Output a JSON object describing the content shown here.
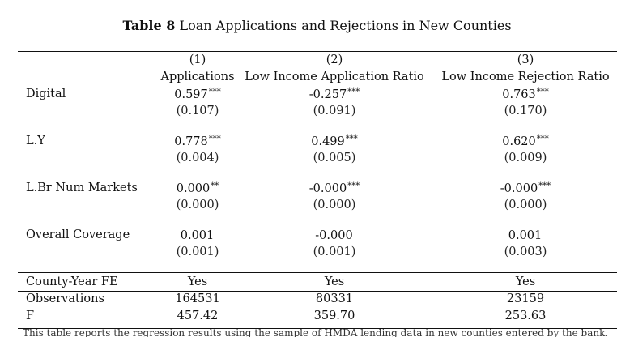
{
  "caption": {
    "label": "Table 8",
    "title": "Loan Applications and Rejections in New Counties"
  },
  "columns": [
    {
      "num": "(1)",
      "name": "Applications"
    },
    {
      "num": "(2)",
      "name": "Low Income Application Ratio"
    },
    {
      "num": "(3)",
      "name": "Low Income Rejection Ratio"
    }
  ],
  "coef_rows": [
    {
      "label": "Digital",
      "coefs": [
        "0.597",
        "-0.257",
        "0.763"
      ],
      "stars": [
        "***",
        "***",
        "***"
      ],
      "ses": [
        "(0.107)",
        "(0.091)",
        "(0.170)"
      ]
    },
    {
      "label": "L.Y",
      "coefs": [
        "0.778",
        "0.499",
        "0.620"
      ],
      "stars": [
        "***",
        "***",
        "***"
      ],
      "ses": [
        "(0.004)",
        "(0.005)",
        "(0.009)"
      ]
    },
    {
      "label": "L.Br Num Markets",
      "coefs": [
        "0.000",
        "-0.000",
        "-0.000"
      ],
      "stars": [
        "**",
        "***",
        "***"
      ],
      "ses": [
        "(0.000)",
        "(0.000)",
        "(0.000)"
      ]
    },
    {
      "label": "Overall Coverage",
      "coefs": [
        "0.001",
        "-0.000",
        "0.001"
      ],
      "stars": [
        "",
        "",
        ""
      ],
      "ses": [
        "(0.001)",
        "(0.001)",
        "(0.003)"
      ]
    }
  ],
  "fe_row": {
    "label": "County-Year FE",
    "values": [
      "Yes",
      "Yes",
      "Yes"
    ]
  },
  "stat_rows": [
    {
      "label": "Observations",
      "values": [
        "164531",
        "80331",
        "23159"
      ]
    },
    {
      "label": "F",
      "values": [
        "457.42",
        "359.70",
        "253.63"
      ]
    }
  ],
  "footnote": "This table reports the regression results using the sample of HMDA lending data in new counties entered by the bank."
}
